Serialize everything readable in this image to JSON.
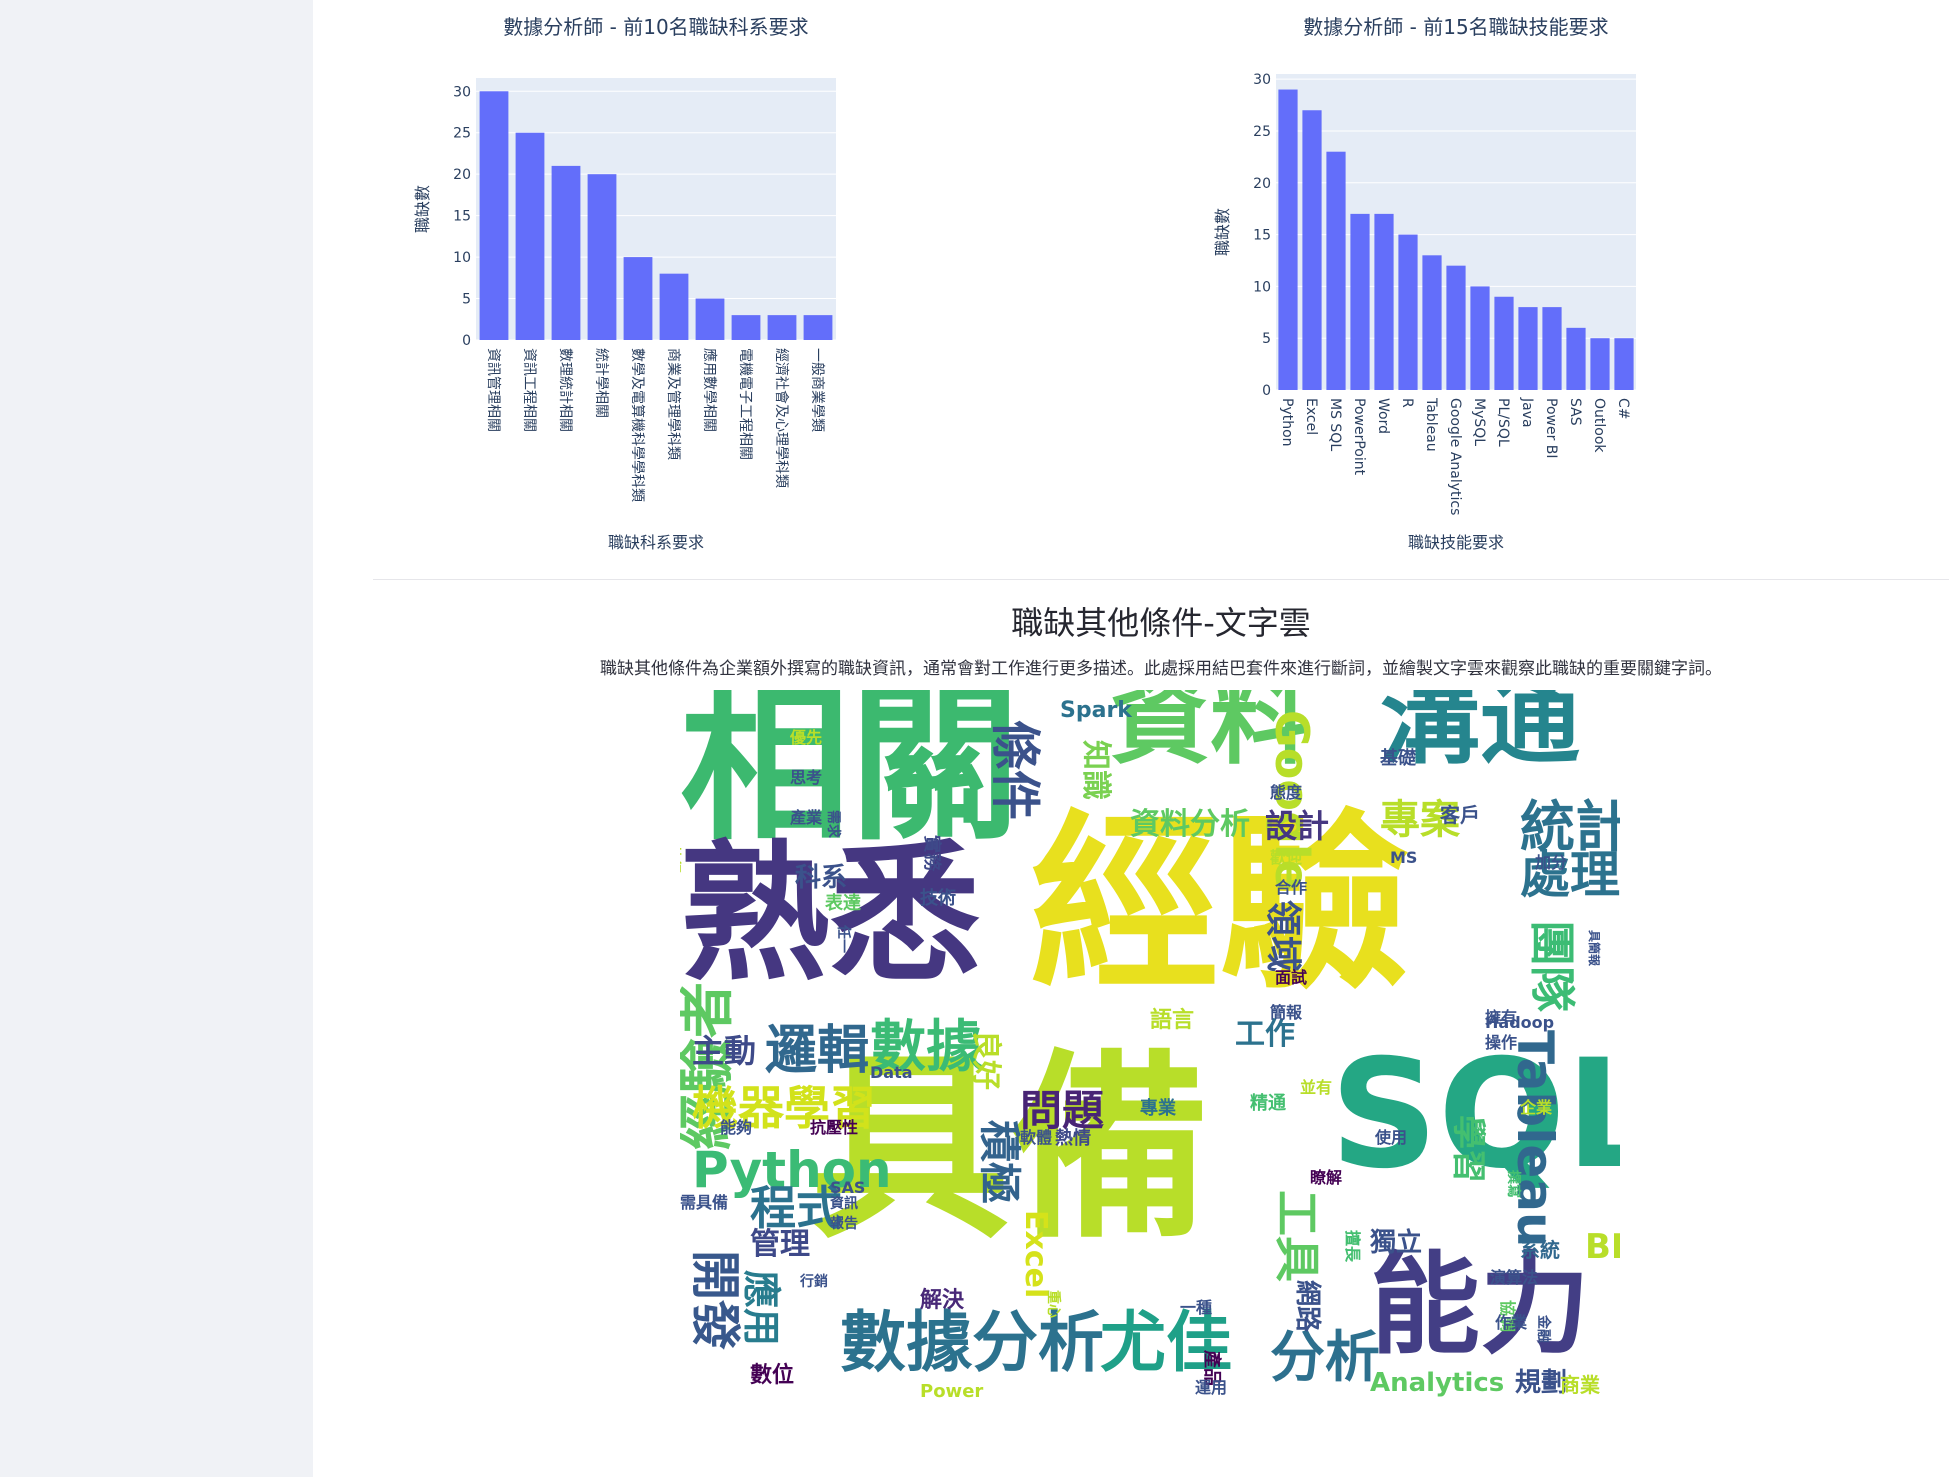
{
  "chart_data": [
    {
      "type": "bar",
      "title": "數據分析師 - 前10名職缺科系要求",
      "xlabel": "職缺科系要求",
      "ylabel": "職缺數",
      "categories": [
        "資訊管理相關",
        "資訊工程相關",
        "數理統計相關",
        "統計學相關",
        "數學及電算機科學學科類",
        "商業及管理學科類",
        "應用數學相關",
        "電機電子工程相關",
        "經濟社會及心理學科類",
        "一般商業學類"
      ],
      "values": [
        30,
        25,
        21,
        20,
        10,
        8,
        5,
        3,
        3,
        3
      ],
      "ylim": [
        0,
        31.6
      ],
      "yticks": [
        0,
        5,
        10,
        15,
        20,
        25,
        30
      ],
      "grid": true
    },
    {
      "type": "bar",
      "title": "數據分析師 - 前15名職缺技能要求",
      "xlabel": "職缺技能要求",
      "ylabel": "職缺數",
      "categories": [
        "Python",
        "Excel",
        "MS SQL",
        "PowerPoint",
        "Word",
        "R",
        "Tableau",
        "Google Analytics",
        "MySQL",
        "PL/SQL",
        "Java",
        "Power BI",
        "SAS",
        "Outlook",
        "C#"
      ],
      "values": [
        29,
        27,
        23,
        17,
        17,
        15,
        13,
        12,
        10,
        9,
        8,
        8,
        6,
        5,
        5
      ],
      "ylim": [
        0,
        30.5
      ],
      "yticks": [
        0,
        5,
        10,
        15,
        20,
        25,
        30
      ],
      "grid": true
    }
  ],
  "colors": {
    "bar": "#636efa",
    "plot_bg": "#e5ecf6",
    "grid": "#ffffff",
    "text": "#2a3f5f"
  },
  "wordcloud": {
    "title": "職缺其他條件-文字雲",
    "description": "職缺其他條件為企業額外撰寫的職缺資訊，通常會對工作進行更多描述。此處採用結巴套件來進行斷詞，並繪製文字雲來觀察此職缺的重要關鍵字詞。",
    "words": [
      {
        "text": "經驗",
        "color": "#e8e01e",
        "weight": 1.0
      },
      {
        "text": "具備",
        "color": "#b8de29",
        "weight": 0.95
      },
      {
        "text": "相關",
        "color": "#3cb96f",
        "weight": 0.8
      },
      {
        "text": "熟悉",
        "color": "#453781",
        "weight": 0.8
      },
      {
        "text": "SQL",
        "color": "#24a784",
        "weight": 0.75
      },
      {
        "text": "資料",
        "color": "#5ec962",
        "weight": 0.6
      },
      {
        "text": "溝通",
        "color": "#25858e",
        "weight": 0.6
      },
      {
        "text": "能力",
        "color": "#433e85",
        "weight": 0.5
      },
      {
        "text": "數據分析",
        "color": "#2c728e",
        "weight": 0.4
      },
      {
        "text": "尤佳",
        "color": "#1fa088",
        "weight": 0.4
      },
      {
        "text": "數據",
        "color": "#3bbb75",
        "weight": 0.35
      },
      {
        "text": "條件",
        "color": "#3b528b",
        "weight": 0.35
      },
      {
        "text": "經驗者",
        "color": "#5ec962",
        "weight": 0.35
      },
      {
        "text": "Python",
        "color": "#3bbb75",
        "weight": 0.3
      },
      {
        "text": "統計",
        "color": "#2c728e",
        "weight": 0.3
      },
      {
        "text": "Tableau",
        "color": "#31688e",
        "weight": 0.3
      },
      {
        "text": "Google",
        "color": "#b8de29",
        "weight": 0.3
      },
      {
        "text": "機器學習",
        "color": "#d2e21b",
        "weight": 0.28
      },
      {
        "text": "邏輯",
        "color": "#31688e",
        "weight": 0.28
      },
      {
        "text": "處理",
        "color": "#2c728e",
        "weight": 0.28
      },
      {
        "text": "開發",
        "color": "#38588c",
        "weight": 0.28
      },
      {
        "text": "積極",
        "color": "#33638d",
        "weight": 0.28
      },
      {
        "text": "工具",
        "color": "#5ec962",
        "weight": 0.28
      },
      {
        "text": "團隊",
        "color": "#3cbc74",
        "weight": 0.28
      },
      {
        "text": "分析",
        "color": "#2d708e",
        "weight": 0.28
      },
      {
        "text": "專案",
        "color": "#b8de29",
        "weight": 0.25
      },
      {
        "text": "程式",
        "color": "#2c728e",
        "weight": 0.25
      },
      {
        "text": "問題",
        "color": "#482475",
        "weight": 0.24
      },
      {
        "text": "主動",
        "color": "#3e4a89",
        "weight": 0.22
      },
      {
        "text": "資料分析",
        "color": "#5ec962",
        "weight": 0.22
      },
      {
        "text": "設計",
        "color": "#453781",
        "weight": 0.22
      },
      {
        "text": "領域",
        "color": "#3b528b",
        "weight": 0.22
      },
      {
        "text": "應用",
        "color": "#287c8e",
        "weight": 0.22
      },
      {
        "text": "工作",
        "color": "#2c728e",
        "weight": 0.2
      },
      {
        "text": "知識",
        "color": "#7ad151",
        "weight": 0.2
      },
      {
        "text": "Excel",
        "color": "#d5e21a",
        "weight": 0.2
      },
      {
        "text": "良好",
        "color": "#b8de29",
        "weight": 0.2
      },
      {
        "text": "學習",
        "color": "#44bf70",
        "weight": 0.2
      },
      {
        "text": "管理",
        "color": "#3e4989",
        "weight": 0.18
      },
      {
        "text": "獨立",
        "color": "#3b528b",
        "weight": 0.18
      },
      {
        "text": "BI",
        "color": "#b8de29",
        "weight": 0.18
      },
      {
        "text": "Analytics",
        "color": "#5ec962",
        "weight": 0.18
      },
      {
        "text": "Spark",
        "color": "#2c728e",
        "weight": 0.17
      },
      {
        "text": "規劃",
        "color": "#3b528b",
        "weight": 0.17
      },
      {
        "text": "科系",
        "color": "#3b528b",
        "weight": 0.17
      },
      {
        "text": "解決",
        "color": "#482878",
        "weight": 0.15
      },
      {
        "text": "網路",
        "color": "#3b528b",
        "weight": 0.15
      },
      {
        "text": "語言",
        "color": "#b8de29",
        "weight": 0.15
      },
      {
        "text": "Power",
        "color": "#b8de29",
        "weight": 0.14
      },
      {
        "text": "數位",
        "color": "#440154",
        "weight": 0.14
      },
      {
        "text": "表達",
        "color": "#5ec962",
        "weight": 0.13
      },
      {
        "text": "技術",
        "color": "#3b528b",
        "weight": 0.13
      },
      {
        "text": "實務",
        "color": "#3e4989",
        "weight": 0.13
      },
      {
        "text": "熱情",
        "color": "#3e4a89",
        "weight": 0.13
      },
      {
        "text": "軟體",
        "color": "#3b528b",
        "weight": 0.13
      },
      {
        "text": "專業",
        "color": "#2c728e",
        "weight": 0.13
      },
      {
        "text": "精通",
        "color": "#44bf70",
        "weight": 0.13
      },
      {
        "text": "系統",
        "color": "#31688e",
        "weight": 0.13
      },
      {
        "text": "演算法",
        "color": "#3b528b",
        "weight": 0.12
      },
      {
        "text": "擅長",
        "color": "#44bf70",
        "weight": 0.12
      },
      {
        "text": "協調",
        "color": "#5ec962",
        "weight": 0.12
      },
      {
        "text": "作業",
        "color": "#3b528b",
        "weight": 0.12
      },
      {
        "text": "金融",
        "color": "#3b528b",
        "weight": 0.11
      },
      {
        "text": "商業",
        "color": "#b8de29",
        "weight": 0.13
      },
      {
        "text": "企業",
        "color": "#b8de29",
        "weight": 0.12
      },
      {
        "text": "使用",
        "color": "#3b528b",
        "weight": 0.12
      },
      {
        "text": "撰寫",
        "color": "#44bf70",
        "weight": 0.11
      },
      {
        "text": "瞭解",
        "color": "#440154",
        "weight": 0.12
      },
      {
        "text": "並有",
        "color": "#b8de29",
        "weight": 0.11
      },
      {
        "text": "擁有",
        "color": "#3b528b",
        "weight": 0.12
      },
      {
        "text": "操作",
        "color": "#3b528b",
        "weight": 0.12
      },
      {
        "text": "Hadoop",
        "color": "#3b528b",
        "weight": 0.12
      },
      {
        "text": "具簡報",
        "color": "#3b528b",
        "weight": 0.11
      },
      {
        "text": "簡報",
        "color": "#3b528b",
        "weight": 0.12
      },
      {
        "text": "面試",
        "color": "#440154",
        "weight": 0.12
      },
      {
        "text": "合作",
        "color": "#3b528b",
        "weight": 0.12
      },
      {
        "text": "歡迎",
        "color": "#b8de29",
        "weight": 0.12
      },
      {
        "text": "加分",
        "color": "#3b528b",
        "weight": 0.12
      },
      {
        "text": "MS",
        "color": "#3b528b",
        "weight": 0.12
      },
      {
        "text": "客戶",
        "color": "#3b528b",
        "weight": 0.13
      },
      {
        "text": "基礎",
        "color": "#3b528b",
        "weight": 0.12
      },
      {
        "text": "態度",
        "color": "#3b528b",
        "weight": 0.12
      },
      {
        "text": "需求",
        "color": "#3b528b",
        "weight": 0.11
      },
      {
        "text": "產業",
        "color": "#3b528b",
        "weight": 0.12
      },
      {
        "text": "思考",
        "color": "#3b528b",
        "weight": 0.12
      },
      {
        "text": "優先",
        "color": "#b8de29",
        "weight": 0.12
      },
      {
        "text": "執行",
        "color": "#b8de29",
        "weight": 0.11
      },
      {
        "text": "任一",
        "color": "#3b528b",
        "weight": 0.11
      },
      {
        "text": "Data",
        "color": "#3b528b",
        "weight": 0.12
      },
      {
        "text": "能夠",
        "color": "#3b528b",
        "weight": 0.12
      },
      {
        "text": "抗壓性",
        "color": "#440154",
        "weight": 0.12
      },
      {
        "text": "需具備",
        "color": "#3b528b",
        "weight": 0.12
      },
      {
        "text": "SAS",
        "color": "#3b528b",
        "weight": 0.11
      },
      {
        "text": "資訊",
        "color": "#3b528b",
        "weight": 0.11
      },
      {
        "text": "報告",
        "color": "#3b528b",
        "weight": 0.11
      },
      {
        "text": "行銷",
        "color": "#3b528b",
        "weight": 0.11
      },
      {
        "text": "重心",
        "color": "#b8de29",
        "weight": 0.11
      },
      {
        "text": "一種",
        "color": "#3b528b",
        "weight": 0.11
      },
      {
        "text": "產品",
        "color": "#440154",
        "weight": 0.12
      },
      {
        "text": "運用",
        "color": "#3b528b",
        "weight": 0.12
      }
    ]
  }
}
